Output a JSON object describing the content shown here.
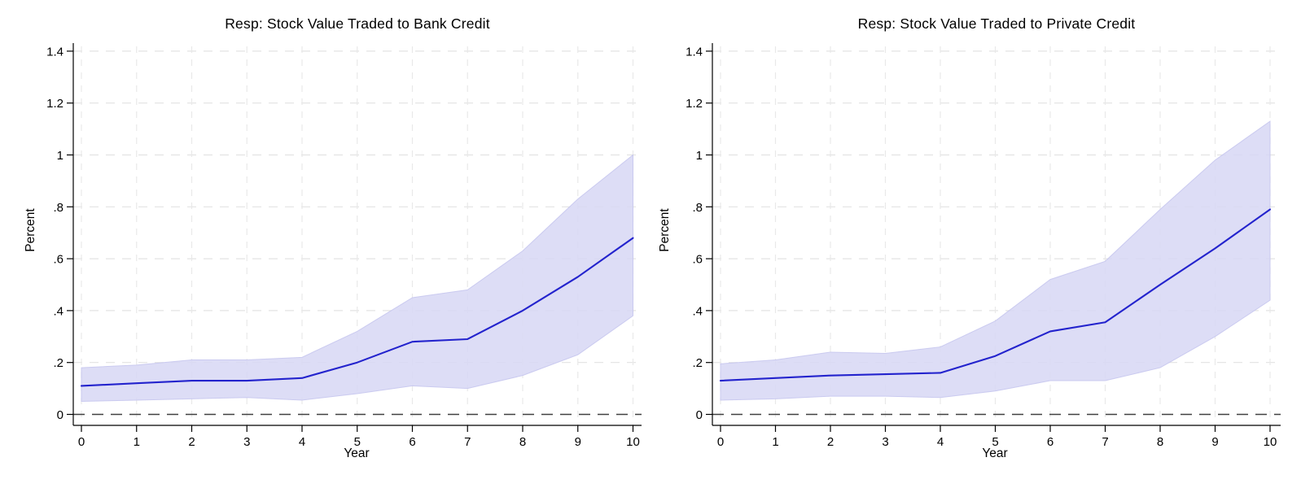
{
  "figure": {
    "background": "#ffffff",
    "line_color": "#2323cd",
    "band_fill_color": "#d7d7f4",
    "band_edge_color": "#c7c7ee",
    "grid_color": "#e3e3e3",
    "vgrid_color": "#e9e9e9",
    "zero_line_color": "#404040",
    "axis_color": "#000000"
  },
  "chart_data": [
    {
      "type": "area",
      "title": "Resp: Stock Value Traded to Bank Credit",
      "xlabel": "Year",
      "ylabel": "Percent",
      "x": [
        0,
        1,
        2,
        3,
        4,
        5,
        6,
        7,
        8,
        9,
        10
      ],
      "series": [
        {
          "name": "response",
          "values": [
            0.11,
            0.12,
            0.13,
            0.13,
            0.14,
            0.2,
            0.28,
            0.29,
            0.4,
            0.53,
            0.68
          ]
        },
        {
          "name": "ci_upper",
          "values": [
            0.18,
            0.19,
            0.21,
            0.21,
            0.22,
            0.32,
            0.45,
            0.48,
            0.63,
            0.83,
            1.0
          ]
        },
        {
          "name": "ci_lower",
          "values": [
            0.05,
            0.055,
            0.06,
            0.065,
            0.055,
            0.08,
            0.11,
            0.1,
            0.15,
            0.23,
            0.38
          ]
        }
      ],
      "xticks": [
        "0",
        "1",
        "2",
        "3",
        "4",
        "5",
        "6",
        "7",
        "8",
        "9",
        "10"
      ],
      "yticks": [
        "0",
        ".2",
        ".4",
        ".6",
        ".8",
        "1",
        "1.2",
        "1.4"
      ],
      "ytick_values": [
        0,
        0.2,
        0.4,
        0.6,
        0.8,
        1.0,
        1.2,
        1.4
      ],
      "ylim": [
        -0.04,
        1.43
      ],
      "grid": true,
      "zero_reference_line": true,
      "legend": "none"
    },
    {
      "type": "area",
      "title": "Resp: Stock Value Traded to Private Credit",
      "xlabel": "Year",
      "ylabel": "Percent",
      "x": [
        0,
        1,
        2,
        3,
        4,
        5,
        6,
        7,
        8,
        9,
        10
      ],
      "series": [
        {
          "name": "response",
          "values": [
            0.13,
            0.14,
            0.15,
            0.155,
            0.16,
            0.225,
            0.32,
            0.355,
            0.5,
            0.64,
            0.79
          ]
        },
        {
          "name": "ci_upper",
          "values": [
            0.195,
            0.21,
            0.24,
            0.235,
            0.26,
            0.36,
            0.52,
            0.59,
            0.79,
            0.98,
            1.13
          ]
        },
        {
          "name": "ci_lower",
          "values": [
            0.055,
            0.06,
            0.07,
            0.07,
            0.065,
            0.09,
            0.13,
            0.13,
            0.18,
            0.3,
            0.44
          ]
        }
      ],
      "xticks": [
        "0",
        "1",
        "2",
        "3",
        "4",
        "5",
        "6",
        "7",
        "8",
        "9",
        "10"
      ],
      "yticks": [
        "0",
        ".2",
        ".4",
        ".6",
        ".8",
        "1",
        "1.2",
        "1.4"
      ],
      "ytick_values": [
        0,
        0.2,
        0.4,
        0.6,
        0.8,
        1.0,
        1.2,
        1.4
      ],
      "ylim": [
        -0.04,
        1.43
      ],
      "grid": true,
      "zero_reference_line": true,
      "legend": "none"
    }
  ]
}
